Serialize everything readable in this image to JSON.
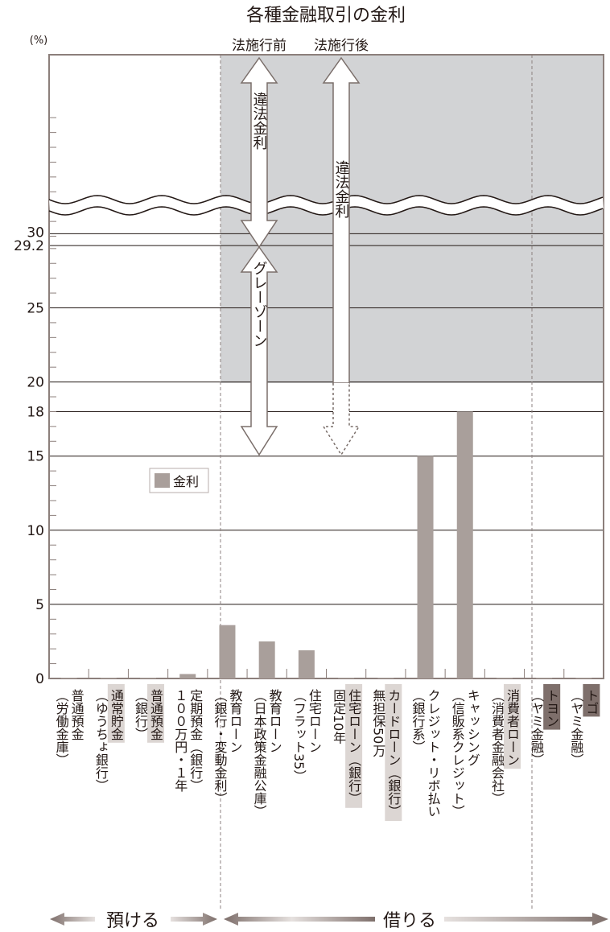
{
  "chart_data": {
    "type": "bar",
    "title": "各種金融取引の金利",
    "y_unit": "(%)",
    "yticks": [
      "0",
      "5",
      "10",
      "15",
      "18",
      "20",
      "25",
      "29.2",
      "30"
    ],
    "ylim": [
      0,
      40
    ],
    "axis_break_above": 30,
    "legend": {
      "label": "金利",
      "position": "left, inside plot"
    },
    "categories": [
      [
        "普通預金",
        "（労働金庫）"
      ],
      [
        "通常貯金",
        "（ゆうちょ銀行）"
      ],
      [
        "普通預金",
        "（銀行）"
      ],
      [
        "定期預金（銀行）",
        "１００万円・１年"
      ],
      [
        "教育ローン",
        "（銀行・変動金利）"
      ],
      [
        "教育ローン",
        "（日本政策金融公庫）"
      ],
      [
        "住宅ローン",
        "（フラット35）"
      ],
      [
        "住宅ローン（銀行）",
        "固定10年"
      ],
      [
        "カードローン（銀行）",
        "無担保50万"
      ],
      [
        "クレジット・リボ払い",
        "（銀行系）"
      ],
      [
        "キャッシング",
        "（信販系クレジット）"
      ],
      [
        "消費者ローン",
        "（消費者金融会社）"
      ],
      [
        "トヨン",
        "（ヤミ金融）"
      ],
      [
        "トゴ",
        "（ヤミ金融）"
      ]
    ],
    "series": [
      {
        "name": "金利",
        "values": [
          0.02,
          0.02,
          0.02,
          0.3,
          3.6,
          2.5,
          1.9,
          0.02,
          0.02,
          15,
          18,
          0.02,
          0.02,
          0.02
        ]
      }
    ],
    "label_box": [
      false,
      true,
      true,
      false,
      false,
      false,
      false,
      true,
      true,
      false,
      false,
      true,
      true,
      true
    ],
    "label_box_dark": [
      false,
      false,
      false,
      false,
      false,
      false,
      false,
      false,
      false,
      false,
      false,
      false,
      true,
      true
    ],
    "annotations": {
      "before_law": "法施行前",
      "after_law": "法施行後",
      "illegal_rate": "違法金利",
      "gray_zone": "グレーゾーン"
    },
    "groups": {
      "deposit": "預ける",
      "borrow": "借りる"
    },
    "colors": {
      "bar": "#a99f9b",
      "shade": "#d2d3d5",
      "axis": "#231815",
      "dark_box": "#7e6f6b",
      "light_box": "#dcd6d3",
      "arrow_stroke": "#7a6e6a"
    }
  }
}
